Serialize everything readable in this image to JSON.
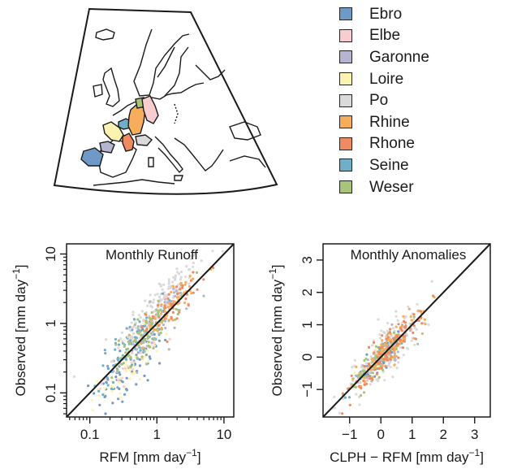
{
  "legend": {
    "items": [
      {
        "name": "Ebro",
        "color": "#6f9ac8"
      },
      {
        "name": "Elbe",
        "color": "#f7cdd0"
      },
      {
        "name": "Garonne",
        "color": "#b5b5cf"
      },
      {
        "name": "Loire",
        "color": "#fbf3b0"
      },
      {
        "name": "Po",
        "color": "#dadada"
      },
      {
        "name": "Rhine",
        "color": "#f6ad5c"
      },
      {
        "name": "Rhone",
        "color": "#ef8a62"
      },
      {
        "name": "Seine",
        "color": "#6fb0c8"
      },
      {
        "name": "Weser",
        "color": "#a9c47a"
      }
    ]
  },
  "chart_data": [
    {
      "type": "scatter",
      "title": "Monthly Runoff",
      "xlabel": "RFM  [mm  day",
      "xlabel_sup": "−1",
      "xlabel_end": "]",
      "ylabel": "Observed  [mm  day",
      "ylabel_sup": "−1",
      "ylabel_end": "]",
      "xscale": "log",
      "yscale": "log",
      "xlim": [
        0.045,
        14
      ],
      "ylim": [
        0.045,
        14
      ],
      "xticks": [
        0.1,
        1,
        10
      ],
      "xtick_labels": [
        "0.1",
        "1",
        "10"
      ],
      "yticks": [
        0.1,
        1,
        10
      ],
      "ytick_labels": [
        "0.1",
        "1",
        "10"
      ],
      "reference_line": "1:1",
      "series": [
        {
          "name": "Ebro",
          "center": [
            0.45,
            0.28
          ],
          "spread": [
            0.55,
            0.75
          ],
          "n": 80
        },
        {
          "name": "Elbe",
          "center": [
            0.55,
            0.5
          ],
          "spread": [
            0.5,
            0.45
          ],
          "n": 45
        },
        {
          "name": "Garonne",
          "center": [
            0.85,
            0.8
          ],
          "spread": [
            0.55,
            0.5
          ],
          "n": 55
        },
        {
          "name": "Loire",
          "center": [
            0.4,
            0.25
          ],
          "spread": [
            0.45,
            0.5
          ],
          "n": 70
        },
        {
          "name": "Po",
          "center": [
            1.2,
            2.2
          ],
          "spread": [
            0.65,
            0.45
          ],
          "n": 140
        },
        {
          "name": "Rhine",
          "center": [
            1.6,
            1.8
          ],
          "spread": [
            0.4,
            0.35
          ],
          "n": 55
        },
        {
          "name": "Rhone",
          "center": [
            1.8,
            2.0
          ],
          "spread": [
            0.4,
            0.35
          ],
          "n": 40
        },
        {
          "name": "Seine",
          "center": [
            0.4,
            0.45
          ],
          "spread": [
            0.5,
            0.5
          ],
          "n": 80
        },
        {
          "name": "Weser",
          "center": [
            0.7,
            0.7
          ],
          "spread": [
            0.5,
            0.45
          ],
          "n": 90
        }
      ]
    },
    {
      "type": "scatter",
      "title": "Monthly Anomalies",
      "xlabel": "CLPH − RFM  [mm  day",
      "xlabel_sup": "−1",
      "xlabel_end": "]",
      "ylabel": "Observed  [mm  day",
      "ylabel_sup": "−1",
      "ylabel_end": "]",
      "xscale": "linear",
      "yscale": "linear",
      "xlim": [
        -1.85,
        3.5
      ],
      "ylim": [
        -1.85,
        3.5
      ],
      "xticks": [
        -1,
        0,
        1,
        2,
        3
      ],
      "xtick_labels": [
        "−1",
        "0",
        "1",
        "2",
        "3"
      ],
      "yticks": [
        -1,
        0,
        1,
        2,
        3
      ],
      "ytick_labels": [
        "−1",
        "0",
        "1",
        "2",
        "3"
      ],
      "reference_line": "1:1",
      "series": [
        {
          "name": "Ebro",
          "center": [
            0.0,
            -0.05
          ],
          "spread": [
            0.35,
            0.4
          ],
          "n": 60
        },
        {
          "name": "Elbe",
          "center": [
            0.0,
            0.05
          ],
          "spread": [
            0.4,
            0.4
          ],
          "n": 40
        },
        {
          "name": "Garonne",
          "center": [
            0.1,
            0.05
          ],
          "spread": [
            0.4,
            0.45
          ],
          "n": 60
        },
        {
          "name": "Loire",
          "center": [
            -0.1,
            -0.1
          ],
          "spread": [
            0.35,
            0.4
          ],
          "n": 50
        },
        {
          "name": "Po",
          "center": [
            0.1,
            0.1
          ],
          "spread": [
            0.7,
            0.9
          ],
          "n": 140
        },
        {
          "name": "Rhine",
          "center": [
            0.35,
            0.35
          ],
          "spread": [
            0.6,
            0.6
          ],
          "n": 90
        },
        {
          "name": "Rhone",
          "center": [
            0.3,
            0.3
          ],
          "spread": [
            0.6,
            0.6
          ],
          "n": 90
        },
        {
          "name": "Seine",
          "center": [
            -0.1,
            -0.1
          ],
          "spread": [
            0.4,
            0.4
          ],
          "n": 70
        },
        {
          "name": "Weser",
          "center": [
            0.0,
            0.0
          ],
          "spread": [
            0.45,
            0.45
          ],
          "n": 80
        }
      ]
    }
  ]
}
